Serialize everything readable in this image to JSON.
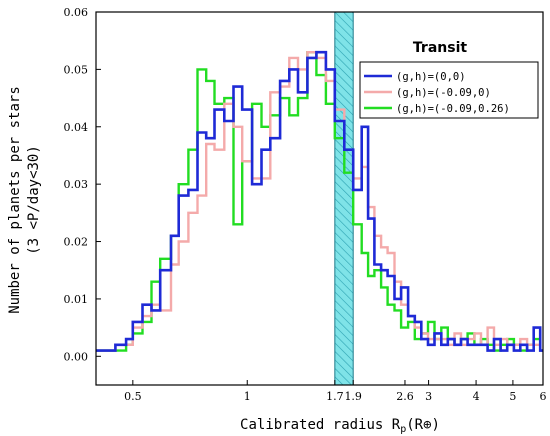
{
  "chart_data": {
    "type": "line",
    "step": true,
    "xlabel": "Calibrated radius R",
    "xlabel_sub": "p",
    "xlabel_unit": "(R⊕)",
    "ylabel_line1": "Number of planets per stars",
    "ylabel_line2": "(3 <P/day<30)",
    "xscale": "log",
    "xlim": [
      0.4,
      6
    ],
    "ylim": [
      -0.005,
      0.06
    ],
    "x_ticks": [
      {
        "v": 0.5,
        "label": "0.5"
      },
      {
        "v": 1,
        "label": "1"
      },
      {
        "v": 1.7,
        "label": "1.7"
      },
      {
        "v": 1.9,
        "label": "1.9"
      },
      {
        "v": 2.6,
        "label": "2.6"
      },
      {
        "v": 3,
        "label": "3"
      },
      {
        "v": 4,
        "label": "4"
      },
      {
        "v": 5,
        "label": "5"
      },
      {
        "v": 6,
        "label": "6"
      }
    ],
    "y_ticks": [
      {
        "v": 0,
        "label": "0.00"
      },
      {
        "v": 0.01,
        "label": "0.01"
      },
      {
        "v": 0.02,
        "label": "0.02"
      },
      {
        "v": 0.03,
        "label": "0.03"
      },
      {
        "v": 0.04,
        "label": "0.04"
      },
      {
        "v": 0.05,
        "label": "0.05"
      },
      {
        "v": 0.06,
        "label": "0.06"
      }
    ],
    "shaded_band": {
      "x0": 1.7,
      "x1": 1.9,
      "color": "#7fe3e8"
    },
    "legend": {
      "title": "Transit",
      "placement": "top-right"
    },
    "series": [
      {
        "name": "(g,h)=(0,0)",
        "color": "#1e2ad6",
        "x": [
          0.4,
          0.45,
          0.48,
          0.5,
          0.53,
          0.56,
          0.59,
          0.63,
          0.66,
          0.7,
          0.74,
          0.78,
          0.82,
          0.87,
          0.92,
          0.97,
          1.03,
          1.09,
          1.15,
          1.22,
          1.29,
          1.36,
          1.44,
          1.52,
          1.61,
          1.7,
          1.8,
          1.9,
          2.0,
          2.08,
          2.16,
          2.25,
          2.34,
          2.44,
          2.54,
          2.65,
          2.76,
          2.87,
          2.99,
          3.11,
          3.24,
          3.37,
          3.51,
          3.65,
          3.8,
          3.96,
          4.12,
          4.29,
          4.46,
          4.64,
          4.83,
          5.03,
          5.23,
          5.45,
          5.67,
          5.9
        ],
        "y": [
          0.001,
          0.002,
          0.003,
          0.006,
          0.009,
          0.008,
          0.015,
          0.021,
          0.028,
          0.029,
          0.039,
          0.038,
          0.043,
          0.041,
          0.047,
          0.043,
          0.03,
          0.036,
          0.038,
          0.048,
          0.05,
          0.046,
          0.052,
          0.053,
          0.05,
          0.041,
          0.036,
          0.029,
          0.04,
          0.024,
          0.016,
          0.015,
          0.014,
          0.01,
          0.012,
          0.007,
          0.006,
          0.003,
          0.002,
          0.004,
          0.002,
          0.003,
          0.002,
          0.003,
          0.002,
          0.002,
          0.002,
          0.001,
          0.003,
          0.001,
          0.002,
          0.001,
          0.002,
          0.001,
          0.005,
          0.001
        ]
      },
      {
        "name": "(g,h)=(-0.09,0)",
        "color": "#f4aaaa",
        "x": [
          0.4,
          0.45,
          0.48,
          0.5,
          0.53,
          0.56,
          0.59,
          0.63,
          0.66,
          0.7,
          0.74,
          0.78,
          0.82,
          0.87,
          0.92,
          0.97,
          1.03,
          1.09,
          1.15,
          1.22,
          1.29,
          1.36,
          1.44,
          1.52,
          1.61,
          1.7,
          1.8,
          1.9,
          2.0,
          2.08,
          2.16,
          2.25,
          2.34,
          2.44,
          2.54,
          2.65,
          2.76,
          2.87,
          2.99,
          3.11,
          3.24,
          3.37,
          3.51,
          3.65,
          3.8,
          3.96,
          4.12,
          4.29,
          4.46,
          4.64,
          4.83,
          5.03,
          5.23,
          5.45,
          5.67,
          5.9
        ],
        "y": [
          0.001,
          0.002,
          0.002,
          0.005,
          0.007,
          0.009,
          0.008,
          0.016,
          0.02,
          0.025,
          0.028,
          0.037,
          0.036,
          0.044,
          0.04,
          0.034,
          0.031,
          0.031,
          0.046,
          0.047,
          0.052,
          0.05,
          0.053,
          0.052,
          0.048,
          0.043,
          0.036,
          0.031,
          0.033,
          0.026,
          0.021,
          0.019,
          0.018,
          0.013,
          0.009,
          0.007,
          0.005,
          0.004,
          0.003,
          0.003,
          0.003,
          0.002,
          0.004,
          0.002,
          0.003,
          0.004,
          0.002,
          0.005,
          0.002,
          0.003,
          0.002,
          0.002,
          0.003,
          0.002,
          0.002,
          0.001
        ]
      },
      {
        "name": "(g,h)=(-0.09,0.26)",
        "color": "#22dd22",
        "x": [
          0.4,
          0.45,
          0.48,
          0.5,
          0.53,
          0.56,
          0.59,
          0.63,
          0.66,
          0.7,
          0.74,
          0.78,
          0.82,
          0.87,
          0.92,
          0.97,
          1.03,
          1.09,
          1.15,
          1.22,
          1.29,
          1.36,
          1.44,
          1.52,
          1.61,
          1.7,
          1.8,
          1.9,
          2.0,
          2.08,
          2.16,
          2.25,
          2.34,
          2.44,
          2.54,
          2.65,
          2.76,
          2.87,
          2.99,
          3.11,
          3.24,
          3.37,
          3.51,
          3.65,
          3.8,
          3.96,
          4.12,
          4.29,
          4.46,
          4.64,
          4.83,
          5.03,
          5.23,
          5.45,
          5.67,
          5.9
        ],
        "y": [
          0.001,
          0.001,
          0.002,
          0.004,
          0.006,
          0.013,
          0.017,
          0.021,
          0.03,
          0.036,
          0.05,
          0.048,
          0.044,
          0.045,
          0.023,
          0.034,
          0.044,
          0.04,
          0.042,
          0.045,
          0.042,
          0.045,
          0.053,
          0.049,
          0.044,
          0.038,
          0.032,
          0.023,
          0.018,
          0.014,
          0.015,
          0.012,
          0.009,
          0.008,
          0.005,
          0.006,
          0.003,
          0.004,
          0.006,
          0.003,
          0.005,
          0.003,
          0.002,
          0.003,
          0.004,
          0.002,
          0.003,
          0.002,
          0.001,
          0.002,
          0.003,
          0.002,
          0.001,
          0.002,
          0.003,
          0.001
        ]
      }
    ]
  }
}
